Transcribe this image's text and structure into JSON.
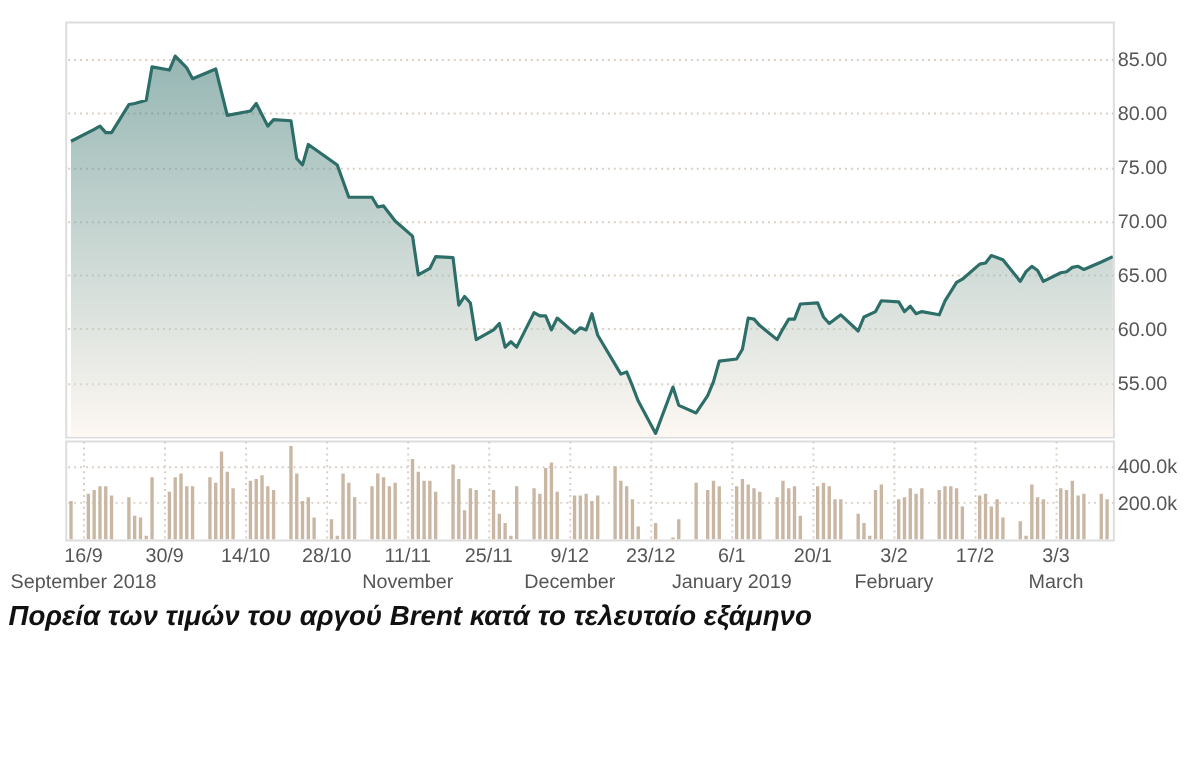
{
  "chart_data": [
    {
      "type": "area",
      "title": "Πορεία των τιμών του αργού Brent κατά το τελευταίο εξάμηνο",
      "x": [
        "2018-09-14",
        "2018-09-18",
        "2018-09-19",
        "2018-09-20",
        "2018-09-21",
        "2018-09-24",
        "2018-09-25",
        "2018-09-27",
        "2018-09-28",
        "2018-10-01",
        "2018-10-02",
        "2018-10-04",
        "2018-10-05",
        "2018-10-09",
        "2018-10-11",
        "2018-10-15",
        "2018-10-16",
        "2018-10-18",
        "2018-10-19",
        "2018-10-22",
        "2018-10-23",
        "2018-10-24",
        "2018-10-25",
        "2018-10-30",
        "2018-11-01",
        "2018-11-05",
        "2018-11-06",
        "2018-11-07",
        "2018-11-09",
        "2018-11-12",
        "2018-11-13",
        "2018-11-15",
        "2018-11-16",
        "2018-11-19",
        "2018-11-20",
        "2018-11-21",
        "2018-11-22",
        "2018-11-23",
        "2018-11-26",
        "2018-11-27",
        "2018-11-28",
        "2018-11-29",
        "2018-11-30",
        "2018-12-03",
        "2018-12-04",
        "2018-12-05",
        "2018-12-06",
        "2018-12-07",
        "2018-12-10",
        "2018-12-11",
        "2018-12-12",
        "2018-12-13",
        "2018-12-14",
        "2018-12-18",
        "2018-12-19",
        "2018-12-20",
        "2018-12-21",
        "2018-12-24",
        "2018-12-27",
        "2018-12-28",
        "2018-12-31",
        "2019-01-02",
        "2019-01-03",
        "2019-01-04",
        "2019-01-07",
        "2019-01-08",
        "2019-01-09",
        "2019-01-10",
        "2019-01-11",
        "2019-01-14",
        "2019-01-15",
        "2019-01-16",
        "2019-01-17",
        "2019-01-18",
        "2019-01-21",
        "2019-01-22",
        "2019-01-23",
        "2019-01-25",
        "2019-01-28",
        "2019-01-29",
        "2019-01-31",
        "2019-02-01",
        "2019-02-04",
        "2019-02-05",
        "2019-02-06",
        "2019-02-07",
        "2019-02-08",
        "2019-02-11",
        "2019-02-12",
        "2019-02-14",
        "2019-02-15",
        "2019-02-18",
        "2019-02-19",
        "2019-02-20",
        "2019-02-22",
        "2019-02-25",
        "2019-02-26",
        "2019-02-27",
        "2019-02-28",
        "2019-03-01",
        "2019-03-04",
        "2019-03-05",
        "2019-03-06",
        "2019-03-07",
        "2019-03-08",
        "2019-03-11",
        "2019-03-13"
      ],
      "series": [
        {
          "color": "#2d6e68",
          "values": [
            77.4,
            78.5,
            78.8,
            78.2,
            78.2,
            80.8,
            80.9,
            81.2,
            84.3,
            84.0,
            85.3,
            84.2,
            83.2,
            84.1,
            79.8,
            80.2,
            80.9,
            78.8,
            79.4,
            79.3,
            75.8,
            75.2,
            77.1,
            75.2,
            72.2,
            72.2,
            71.3,
            71.4,
            70.0,
            68.6,
            65.0,
            65.6,
            66.7,
            66.6,
            62.2,
            63.0,
            62.4,
            59.0,
            59.9,
            60.5,
            58.3,
            58.8,
            58.3,
            61.5,
            61.2,
            61.2,
            59.9,
            61.0,
            59.6,
            60.1,
            59.9,
            61.4,
            59.4,
            55.8,
            56.0,
            54.7,
            53.3,
            50.3,
            54.6,
            52.9,
            52.2,
            53.8,
            55.1,
            57.0,
            57.2,
            58.1,
            61.0,
            60.9,
            60.3,
            59.0,
            60.0,
            60.9,
            60.9,
            62.3,
            62.4,
            61.1,
            60.5,
            61.3,
            59.8,
            61.1,
            61.6,
            62.6,
            62.5,
            61.6,
            62.1,
            61.4,
            61.6,
            61.3,
            62.6,
            64.3,
            64.6,
            66.0,
            66.1,
            66.8,
            66.4,
            64.4,
            65.3,
            65.8,
            65.4,
            64.4,
            65.2,
            65.3,
            65.7,
            65.8,
            65.5,
            66.2,
            66.7
          ]
        }
      ],
      "xlim": [
        "2018-09-13",
        "2019-03-13"
      ],
      "ylim": [
        50,
        88.5
      ],
      "yticks": [
        {
          "value": 55,
          "label": "55.00"
        },
        {
          "value": 60,
          "label": "60.00"
        },
        {
          "value": 65,
          "label": "65.00"
        },
        {
          "value": 70,
          "label": "70.00"
        },
        {
          "value": 75,
          "label": "75.00"
        },
        {
          "value": 80,
          "label": "80.00"
        },
        {
          "value": 85,
          "label": "85.00"
        }
      ],
      "grid": true,
      "tick_labels": "y",
      "legend": false
    },
    {
      "type": "bar",
      "x": [
        "2018-09-14",
        "2018-09-17",
        "2018-09-18",
        "2018-09-19",
        "2018-09-20",
        "2018-09-21",
        "2018-09-24",
        "2018-09-25",
        "2018-09-26",
        "2018-09-27",
        "2018-09-28",
        "2018-10-01",
        "2018-10-02",
        "2018-10-03",
        "2018-10-04",
        "2018-10-05",
        "2018-10-08",
        "2018-10-09",
        "2018-10-10",
        "2018-10-11",
        "2018-10-12",
        "2018-10-15",
        "2018-10-16",
        "2018-10-17",
        "2018-10-18",
        "2018-10-19",
        "2018-10-22",
        "2018-10-23",
        "2018-10-24",
        "2018-10-25",
        "2018-10-26",
        "2018-10-29",
        "2018-10-30",
        "2018-10-31",
        "2018-11-01",
        "2018-11-02",
        "2018-11-05",
        "2018-11-06",
        "2018-11-07",
        "2018-11-08",
        "2018-11-09",
        "2018-11-12",
        "2018-11-13",
        "2018-11-14",
        "2018-11-15",
        "2018-11-16",
        "2018-11-19",
        "2018-11-20",
        "2018-11-21",
        "2018-11-22",
        "2018-11-23",
        "2018-11-26",
        "2018-11-27",
        "2018-11-28",
        "2018-11-29",
        "2018-11-30",
        "2018-12-03",
        "2018-12-04",
        "2018-12-05",
        "2018-12-06",
        "2018-12-07",
        "2018-12-10",
        "2018-12-11",
        "2018-12-12",
        "2018-12-13",
        "2018-12-14",
        "2018-12-17",
        "2018-12-18",
        "2018-12-19",
        "2018-12-20",
        "2018-12-21",
        "2018-12-24",
        "2018-12-27",
        "2018-12-28",
        "2018-12-31",
        "2019-01-02",
        "2019-01-03",
        "2019-01-04",
        "2019-01-07",
        "2019-01-08",
        "2019-01-09",
        "2019-01-10",
        "2019-01-11",
        "2019-01-14",
        "2019-01-15",
        "2019-01-16",
        "2019-01-17",
        "2019-01-18",
        "2019-01-21",
        "2019-01-22",
        "2019-01-23",
        "2019-01-24",
        "2019-01-25",
        "2019-01-28",
        "2019-01-29",
        "2019-01-30",
        "2019-01-31",
        "2019-02-01",
        "2019-02-04",
        "2019-02-05",
        "2019-02-06",
        "2019-02-07",
        "2019-02-08",
        "2019-02-11",
        "2019-02-12",
        "2019-02-13",
        "2019-02-14",
        "2019-02-15",
        "2019-02-18",
        "2019-02-19",
        "2019-02-20",
        "2019-02-21",
        "2019-02-22",
        "2019-02-25",
        "2019-02-26",
        "2019-02-27",
        "2019-02-28",
        "2019-03-01",
        "2019-03-04",
        "2019-03-05",
        "2019-03-06",
        "2019-03-07",
        "2019-03-08",
        "2019-03-11",
        "2019-03-12"
      ],
      "series": [
        {
          "color": "#c9b7a3",
          "values": [
            210000,
            250000,
            270000,
            290000,
            290000,
            240000,
            230000,
            130000,
            120000,
            20000,
            340000,
            260000,
            340000,
            360000,
            290000,
            290000,
            340000,
            310000,
            480000,
            370000,
            280000,
            320000,
            330000,
            350000,
            290000,
            270000,
            510000,
            360000,
            210000,
            230000,
            120000,
            110000,
            20000,
            360000,
            310000,
            230000,
            290000,
            360000,
            340000,
            290000,
            310000,
            440000,
            370000,
            320000,
            320000,
            260000,
            410000,
            330000,
            160000,
            280000,
            270000,
            270000,
            140000,
            90000,
            20000,
            290000,
            280000,
            250000,
            390000,
            420000,
            260000,
            240000,
            240000,
            250000,
            210000,
            240000,
            400000,
            320000,
            290000,
            220000,
            70000,
            90000,
            10000,
            110000,
            310000,
            270000,
            320000,
            290000,
            290000,
            330000,
            300000,
            280000,
            260000,
            230000,
            320000,
            280000,
            290000,
            130000,
            290000,
            310000,
            290000,
            220000,
            220000,
            140000,
            90000,
            20000,
            270000,
            300000,
            220000,
            230000,
            280000,
            250000,
            280000,
            270000,
            290000,
            290000,
            280000,
            180000,
            240000,
            250000,
            180000,
            220000,
            120000,
            100000,
            20000,
            300000,
            230000,
            220000,
            280000,
            270000,
            320000,
            240000,
            250000,
            250000,
            220000
          ]
        }
      ],
      "xlim": [
        "2018-09-13",
        "2019-03-13"
      ],
      "ylim": [
        0,
        540000
      ],
      "yticks": [
        {
          "value": 200000,
          "label": "200.0k"
        },
        {
          "value": 400000,
          "label": "400.0k"
        }
      ],
      "xticks": [
        {
          "value": "2018-09-16",
          "label": "16/9\nSeptember 2018"
        },
        {
          "value": "2018-09-30",
          "label": "30/9"
        },
        {
          "value": "2018-10-14",
          "label": "14/10"
        },
        {
          "value": "2018-10-28",
          "label": "28/10"
        },
        {
          "value": "2018-11-11",
          "label": "11/11\nNovember"
        },
        {
          "value": "2018-11-25",
          "label": "25/11"
        },
        {
          "value": "2018-12-09",
          "label": "9/12\nDecember"
        },
        {
          "value": "2018-12-23",
          "label": "23/12"
        },
        {
          "value": "2019-01-06",
          "label": "6/1\nJanuary 2019"
        },
        {
          "value": "2019-01-20",
          "label": "20/1"
        },
        {
          "value": "2019-02-03",
          "label": "3/2\nFebruary"
        },
        {
          "value": "2019-02-17",
          "label": "17/2"
        },
        {
          "value": "2019-03-03",
          "label": "3/3\nMarch"
        }
      ],
      "grid": true,
      "legend": false
    }
  ]
}
